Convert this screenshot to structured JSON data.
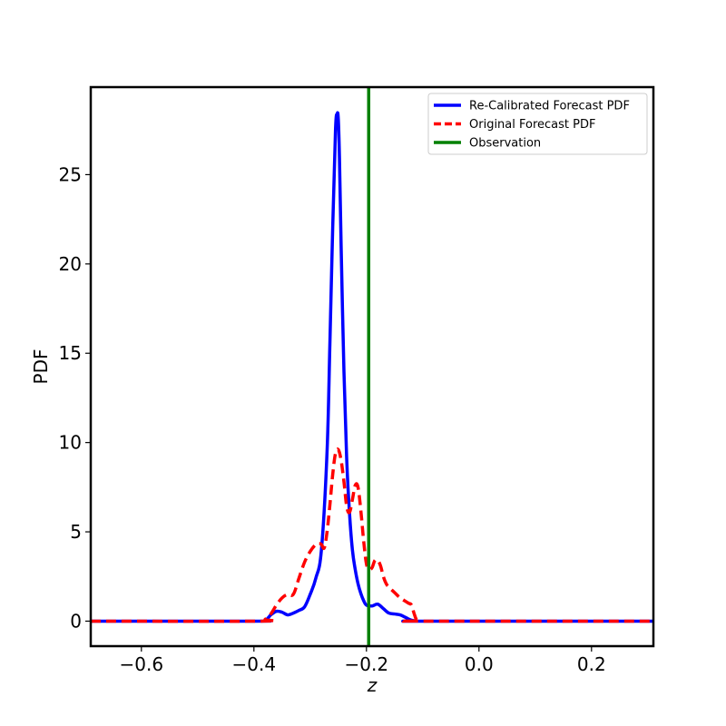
{
  "chart_data": {
    "type": "line",
    "xlabel": "z",
    "ylabel": "PDF",
    "xlim": [
      -0.69,
      0.31
    ],
    "ylim": [
      -1.4,
      29.9
    ],
    "grid": false,
    "legend_position": "top-right",
    "x_ticks": [
      {
        "value": -0.6,
        "label": "−0.6"
      },
      {
        "value": -0.4,
        "label": "−0.4"
      },
      {
        "value": -0.2,
        "label": "−0.2"
      },
      {
        "value": 0.0,
        "label": "0.0"
      },
      {
        "value": 0.2,
        "label": "0.2"
      }
    ],
    "y_ticks": [
      {
        "value": 0,
        "label": "0"
      },
      {
        "value": 5,
        "label": "5"
      },
      {
        "value": 10,
        "label": "10"
      },
      {
        "value": 15,
        "label": "15"
      },
      {
        "value": 20,
        "label": "20"
      },
      {
        "value": 25,
        "label": "25"
      }
    ],
    "series": [
      {
        "name": "Re-Calibrated Forecast PDF",
        "color": "#0000ff",
        "style": "solid",
        "x": [
          -0.69,
          -0.4,
          -0.38,
          -0.37,
          -0.36,
          -0.35,
          -0.34,
          -0.33,
          -0.32,
          -0.31,
          -0.3,
          -0.29,
          -0.28,
          -0.27,
          -0.265,
          -0.26,
          -0.255,
          -0.252,
          -0.25,
          -0.248,
          -0.245,
          -0.24,
          -0.235,
          -0.23,
          -0.225,
          -0.22,
          -0.215,
          -0.21,
          -0.205,
          -0.2,
          -0.19,
          -0.18,
          -0.17,
          -0.16,
          -0.15,
          -0.14,
          -0.13,
          -0.12,
          -0.11,
          -0.1,
          0.31
        ],
        "y": [
          0.0,
          0.0,
          0.05,
          0.35,
          0.55,
          0.5,
          0.35,
          0.45,
          0.6,
          0.8,
          1.5,
          2.4,
          4.0,
          9.5,
          15.5,
          22.0,
          27.5,
          28.4,
          28.1,
          26.0,
          21.0,
          14.0,
          9.0,
          6.0,
          4.0,
          2.9,
          2.1,
          1.55,
          1.15,
          0.9,
          0.85,
          0.95,
          0.7,
          0.45,
          0.4,
          0.35,
          0.2,
          0.05,
          0.0,
          0.0,
          0.0
        ]
      },
      {
        "name": "Original Forecast PDF",
        "color": "#ff0000",
        "style": "dashed",
        "x": [
          -0.69,
          -0.39,
          -0.38,
          -0.37,
          -0.36,
          -0.35,
          -0.34,
          -0.33,
          -0.32,
          -0.31,
          -0.3,
          -0.29,
          -0.285,
          -0.28,
          -0.275,
          -0.27,
          -0.265,
          -0.26,
          -0.255,
          -0.25,
          -0.245,
          -0.24,
          -0.235,
          -0.23,
          -0.225,
          -0.22,
          -0.215,
          -0.21,
          -0.205,
          -0.2,
          -0.195,
          -0.19,
          -0.185,
          -0.18,
          -0.175,
          -0.17,
          -0.165,
          -0.16,
          -0.15,
          -0.14,
          -0.13,
          -0.125,
          -0.12,
          -0.115,
          -0.11,
          -0.1,
          0.31
        ],
        "y": [
          0.0,
          0.0,
          0.1,
          0.4,
          0.9,
          1.3,
          1.5,
          1.5,
          2.4,
          3.3,
          3.9,
          4.3,
          4.35,
          4.3,
          4.1,
          5.0,
          6.5,
          8.2,
          9.4,
          9.6,
          9.0,
          7.8,
          6.4,
          6.1,
          6.8,
          7.6,
          7.5,
          6.2,
          4.5,
          3.2,
          2.9,
          3.0,
          3.4,
          3.4,
          3.1,
          2.5,
          2.1,
          1.9,
          1.6,
          1.3,
          1.1,
          1.0,
          0.9,
          0.4,
          0.05,
          0.0,
          0.0
        ]
      },
      {
        "name": "Observation",
        "color": "#008000",
        "style": "vline",
        "x_value": -0.196
      }
    ]
  }
}
